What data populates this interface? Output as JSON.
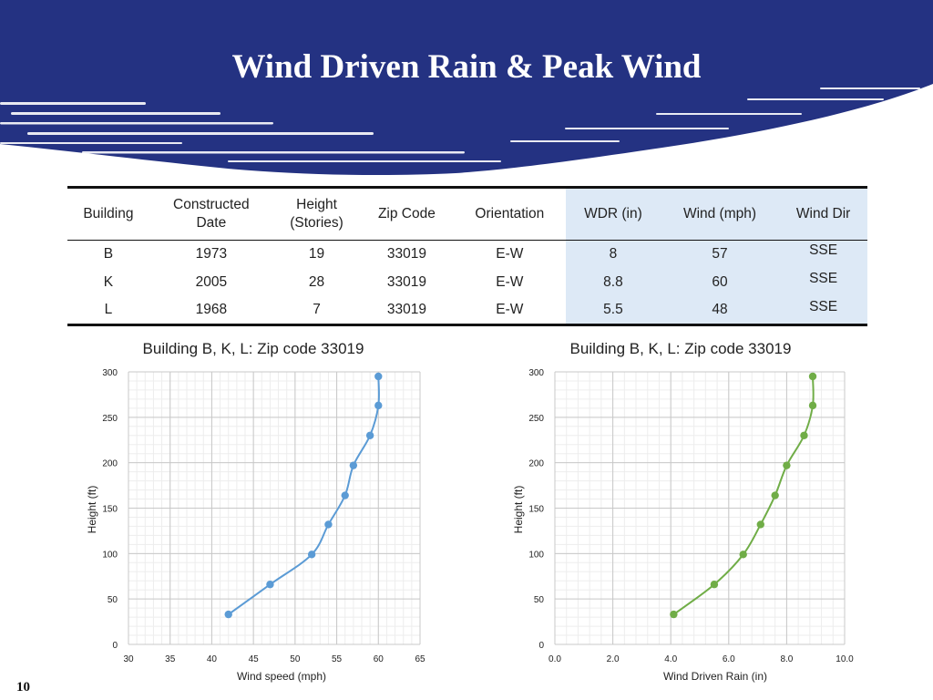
{
  "slide": {
    "title": "Wind Driven Rain & Peak Wind",
    "page_number": "10"
  },
  "colors": {
    "banner": "#243282",
    "highlight": "#dde9f6",
    "wind_series": "#5b9bd5",
    "wdr_series": "#70ad47"
  },
  "table": {
    "headers": [
      [
        "Building"
      ],
      [
        "Constructed",
        "Date"
      ],
      [
        "Height",
        "(Stories)"
      ],
      [
        "Zip Code"
      ],
      [
        "Orientation"
      ],
      [
        "WDR (in)"
      ],
      [
        "Wind  (mph)"
      ],
      [
        "Wind Dir"
      ]
    ],
    "rows": [
      [
        "B",
        "1973",
        "19",
        "33019",
        "E-W",
        "8",
        "57",
        "SSE"
      ],
      [
        "K",
        "2005",
        "28",
        "33019",
        "E-W",
        "8.8",
        "60",
        "SSE"
      ],
      [
        "L",
        "1968",
        "7",
        "33019",
        "E-W",
        "5.5",
        "48",
        "SSE"
      ]
    ]
  },
  "chart_data": [
    {
      "type": "scatter",
      "title": "Building B, K, L: Zip code 33019",
      "xlabel": "Wind speed (mph)",
      "ylabel": "Height (ft)",
      "xlim": [
        30,
        65
      ],
      "ylim": [
        0,
        300
      ],
      "xticks": [
        30,
        35,
        40,
        45,
        50,
        55,
        60,
        65
      ],
      "xtick_labels": [
        "30",
        "35",
        "40",
        "45",
        "50",
        "55",
        "60",
        "65"
      ],
      "yticks": [
        0,
        50,
        100,
        150,
        200,
        250,
        300
      ],
      "ytick_labels": [
        "0",
        "50",
        "100",
        "150",
        "200",
        "250",
        "300"
      ],
      "grid": true,
      "smooth_line": true,
      "series": [
        {
          "color": "#5b9bd5",
          "x": [
            42,
            47,
            52,
            54,
            56,
            57,
            59,
            60,
            60
          ],
          "y": [
            33,
            66,
            99,
            132,
            164,
            197,
            230,
            263,
            295
          ]
        }
      ]
    },
    {
      "type": "scatter",
      "title": "Building B, K, L: Zip code 33019",
      "xlabel": "Wind Driven Rain (in)",
      "ylabel": "Height (ft)",
      "xlim": [
        0,
        10
      ],
      "ylim": [
        0,
        300
      ],
      "xticks": [
        0,
        2,
        4,
        6,
        8,
        10
      ],
      "xtick_labels": [
        "0.0",
        "2.0",
        "4.0",
        "6.0",
        "8.0",
        "10.0"
      ],
      "yticks": [
        0,
        50,
        100,
        150,
        200,
        250,
        300
      ],
      "ytick_labels": [
        "0",
        "50",
        "100",
        "150",
        "200",
        "250",
        "300"
      ],
      "grid": true,
      "smooth_line": true,
      "series": [
        {
          "color": "#70ad47",
          "x": [
            4.1,
            5.5,
            6.5,
            7.1,
            7.6,
            8.0,
            8.6,
            8.9,
            8.9
          ],
          "y": [
            33,
            66,
            99,
            132,
            164,
            197,
            230,
            263,
            295
          ]
        }
      ]
    }
  ]
}
